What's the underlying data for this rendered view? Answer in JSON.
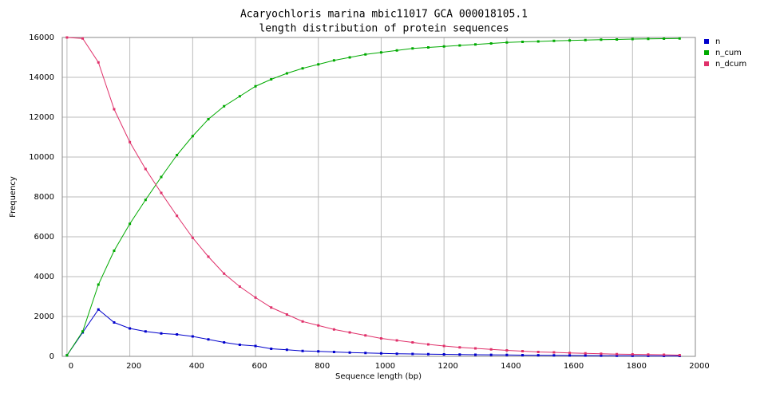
{
  "chart_data": {
    "type": "line",
    "title": "Acaryochloris marina mbic11017 GCA 000018105.1",
    "subtitle": "length distribution of protein sequences",
    "x_label": "Sequence length (bp)",
    "y_label": "Frequency",
    "x": [
      0,
      50,
      100,
      150,
      200,
      250,
      300,
      350,
      400,
      450,
      500,
      550,
      600,
      650,
      700,
      750,
      800,
      850,
      900,
      950,
      1000,
      1050,
      1100,
      1150,
      1200,
      1250,
      1300,
      1350,
      1400,
      1450,
      1500,
      1550,
      1600,
      1650,
      1700,
      1750,
      1800,
      1850,
      1900,
      1950
    ],
    "series": [
      {
        "name": "n",
        "color": "#0000cc",
        "values": [
          50,
          1200,
          2350,
          1700,
          1400,
          1250,
          1150,
          1100,
          1000,
          850,
          700,
          580,
          520,
          380,
          330,
          270,
          250,
          220,
          190,
          170,
          150,
          130,
          120,
          110,
          100,
          90,
          80,
          75,
          70,
          60,
          55,
          50,
          45,
          40,
          35,
          30,
          28,
          25,
          22,
          20
        ]
      },
      {
        "name": "n_cum",
        "color": "#00aa00",
        "values": [
          50,
          1250,
          3600,
          5300,
          6650,
          7850,
          9000,
          10100,
          11050,
          11900,
          12550,
          13050,
          13550,
          13900,
          14200,
          14450,
          14650,
          14850,
          15000,
          15150,
          15250,
          15350,
          15450,
          15500,
          15550,
          15600,
          15650,
          15700,
          15750,
          15780,
          15800,
          15830,
          15850,
          15870,
          15890,
          15900,
          15920,
          15930,
          15940,
          15950
        ]
      },
      {
        "name": "n_dcum",
        "color": "#e0306a",
        "values": [
          16000,
          15950,
          14750,
          12400,
          10750,
          9400,
          8200,
          7050,
          5950,
          5000,
          4150,
          3500,
          2950,
          2450,
          2100,
          1750,
          1550,
          1350,
          1200,
          1050,
          900,
          800,
          700,
          600,
          520,
          450,
          400,
          350,
          300,
          260,
          220,
          200,
          170,
          150,
          130,
          110,
          100,
          90,
          80,
          60
        ]
      }
    ],
    "xlim": [
      -15,
      2000
    ],
    "xticks": [
      0,
      200,
      400,
      600,
      800,
      1000,
      1200,
      1400,
      1600,
      1800,
      2000
    ],
    "ylim": [
      0,
      16000
    ],
    "yticks": [
      0,
      2000,
      4000,
      6000,
      8000,
      10000,
      12000,
      14000,
      16000
    ],
    "grid": true,
    "legend": "right"
  }
}
